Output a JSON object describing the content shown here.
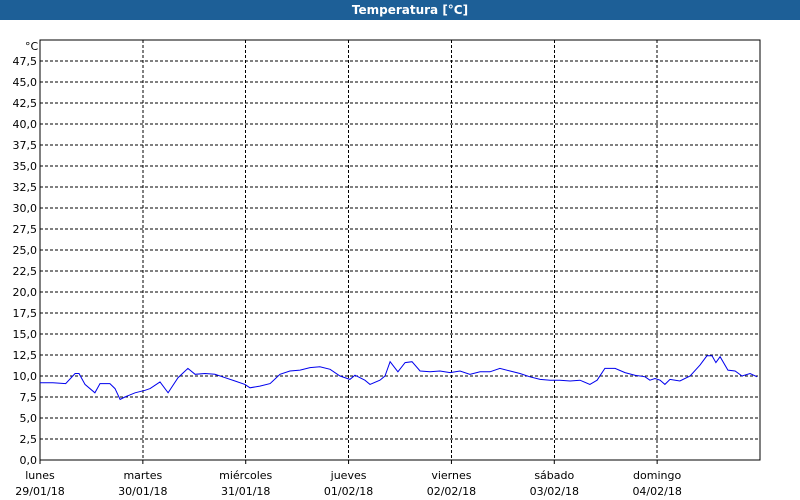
{
  "chart_data": {
    "type": "line",
    "title": "Temperatura [°C]",
    "y_unit": "°C",
    "xlim": [
      0,
      168
    ],
    "xticks": [
      {
        "value": 0,
        "label": "lunes",
        "date": "29/01/18"
      },
      {
        "value": 24,
        "label": "martes",
        "date": "30/01/18"
      },
      {
        "value": 48,
        "label": "miércoles",
        "date": "31/01/18"
      },
      {
        "value": 72,
        "label": "jueves",
        "date": "01/02/18"
      },
      {
        "value": 96,
        "label": "viernes",
        "date": "02/02/18"
      },
      {
        "value": 120,
        "label": "sábado",
        "date": "03/02/18"
      },
      {
        "value": 144,
        "label": "domingo",
        "date": "04/02/18"
      }
    ],
    "ylim": [
      0,
      50
    ],
    "yticks": [
      {
        "value": 0,
        "label": "0,0"
      },
      {
        "value": 2.5,
        "label": "2,5"
      },
      {
        "value": 5,
        "label": "5,0"
      },
      {
        "value": 7.5,
        "label": "7,5"
      },
      {
        "value": 10,
        "label": "10,0"
      },
      {
        "value": 12.5,
        "label": "12,5"
      },
      {
        "value": 15,
        "label": "15,0"
      },
      {
        "value": 17.5,
        "label": "17,5"
      },
      {
        "value": 20,
        "label": "20,0"
      },
      {
        "value": 22.5,
        "label": "22,5"
      },
      {
        "value": 25,
        "label": "25,0"
      },
      {
        "value": 27.5,
        "label": "27,5"
      },
      {
        "value": 30,
        "label": "30,0"
      },
      {
        "value": 32.5,
        "label": "32,5"
      },
      {
        "value": 35,
        "label": "35,0"
      },
      {
        "value": 37.5,
        "label": "37,5"
      },
      {
        "value": 40,
        "label": "40,0"
      },
      {
        "value": 42.5,
        "label": "42,5"
      },
      {
        "value": 45,
        "label": "45,0"
      },
      {
        "value": 47.5,
        "label": "47,5"
      }
    ],
    "grid": true,
    "series": [
      {
        "color": "#0000ee",
        "x": [
          0,
          3,
          6,
          8.2,
          9.1,
          10.5,
          12.8,
          14,
          16.3,
          17.5,
          18.7,
          19.8,
          22.2,
          24.5,
          25.7,
          28,
          29.9,
          32.2,
          34.5,
          36.2,
          38.5,
          40.8,
          43.2,
          45.5,
          47.8,
          49,
          51.3,
          53.7,
          56,
          58.3,
          60.7,
          63,
          65.3,
          67.7,
          70,
          72.3,
          73.5,
          75.8,
          77,
          79.3,
          80.5,
          81.7,
          83.5,
          85.2,
          86.8,
          88.7,
          91,
          93.3,
          95.7,
          98,
          100.3,
          102.7,
          105,
          107.3,
          109.7,
          112,
          114.3,
          116.7,
          119,
          121.3,
          123.7,
          126,
          128.3,
          130,
          131.8,
          134.2,
          136.5,
          138.8,
          141.2,
          142.3,
          143.5,
          144.7,
          145.8,
          147,
          149.3,
          151.7,
          154,
          155.6,
          156.8,
          157.7,
          158.7,
          160.5,
          162.2,
          163.8,
          165.7,
          167.3
        ],
        "values": [
          9.2,
          9.2,
          9.1,
          10.3,
          10.3,
          9.0,
          8.0,
          9.1,
          9.1,
          8.5,
          7.2,
          7.5,
          8.0,
          8.3,
          8.5,
          9.3,
          8.0,
          9.8,
          10.9,
          10.2,
          10.3,
          10.2,
          9.8,
          9.4,
          9.0,
          8.6,
          8.8,
          9.1,
          10.2,
          10.6,
          10.7,
          11.0,
          11.1,
          10.8,
          10.0,
          9.6,
          10.1,
          9.5,
          9.0,
          9.5,
          10.0,
          11.7,
          10.5,
          11.6,
          11.7,
          10.6,
          10.5,
          10.6,
          10.4,
          10.6,
          10.2,
          10.5,
          10.5,
          10.9,
          10.6,
          10.3,
          9.9,
          9.6,
          9.5,
          9.5,
          9.4,
          9.5,
          9.0,
          9.5,
          10.9,
          10.9,
          10.4,
          10.1,
          9.9,
          9.5,
          9.7,
          9.5,
          9.0,
          9.6,
          9.4,
          10.0,
          11.3,
          12.4,
          12.4,
          11.6,
          12.3,
          10.7,
          10.6,
          10.0,
          10.3,
          9.9
        ]
      }
    ]
  }
}
